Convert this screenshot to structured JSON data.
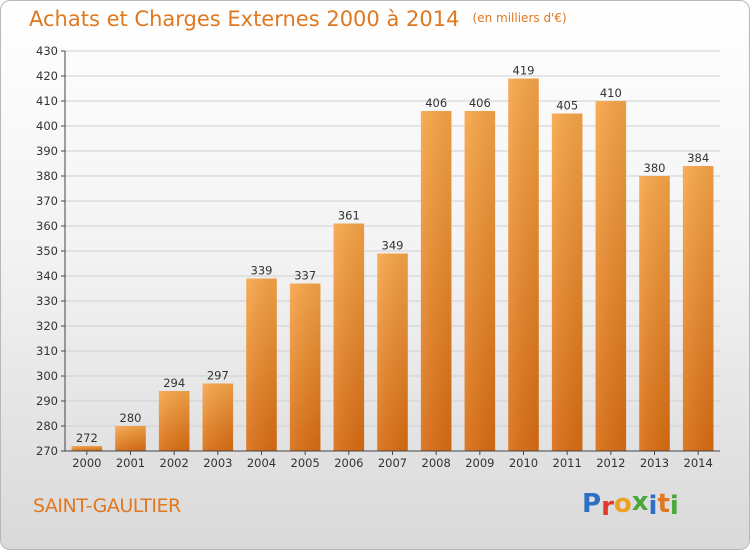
{
  "chart_data": {
    "type": "bar",
    "title": "Achats et Charges Externes 2000 à 2014",
    "subtitle": "(en milliers d'€)",
    "categories": [
      "2000",
      "2001",
      "2002",
      "2003",
      "2004",
      "2005",
      "2006",
      "2007",
      "2008",
      "2009",
      "2010",
      "2011",
      "2012",
      "2013",
      "2014"
    ],
    "values": [
      272,
      280,
      294,
      297,
      339,
      337,
      361,
      349,
      406,
      406,
      419,
      405,
      410,
      380,
      384
    ],
    "ylim": [
      270,
      430
    ],
    "yticks": [
      270,
      280,
      290,
      300,
      310,
      320,
      330,
      340,
      350,
      360,
      370,
      380,
      390,
      400,
      410,
      420,
      430
    ],
    "grid": true,
    "legend": "none",
    "bar_color_top": "#f7a548",
    "bar_color_bottom": "#d86c12"
  },
  "location": "SAINT-GAULTIER",
  "logo": {
    "letters": [
      "P",
      "r",
      "o",
      "x",
      "i",
      "t",
      "i"
    ],
    "colors": [
      "#2c6fc4",
      "#e03a2a",
      "#f0a020",
      "#4aa83a",
      "#2c6fc4",
      "#e07820",
      "#4aa83a"
    ]
  },
  "colors": {
    "accent": "#e07820",
    "grid": "#d0d0d0",
    "axis": "#444444"
  }
}
